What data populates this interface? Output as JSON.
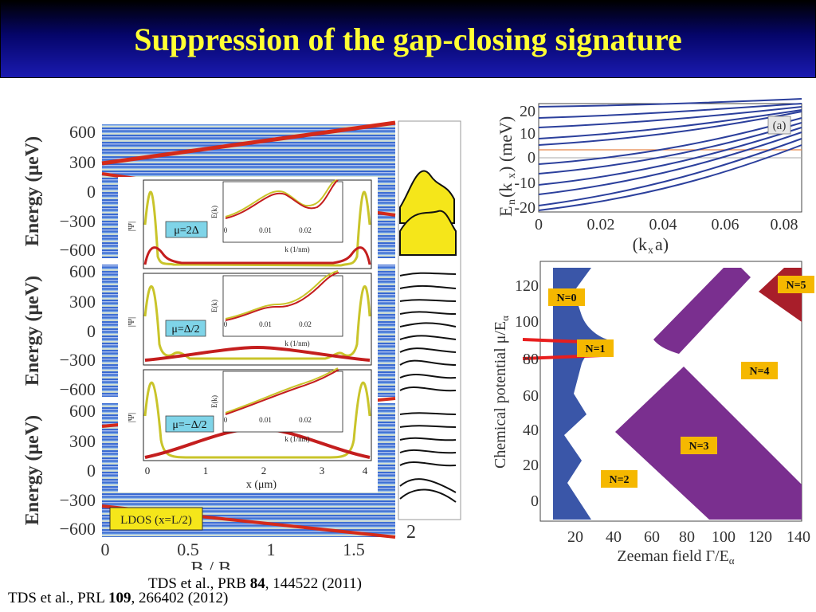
{
  "title": "Suppression of the gap-closing signature",
  "citations": {
    "prb": {
      "authors": "TDS et al., PRB ",
      "volume": "84",
      "rest": ", 144522 (2011)"
    },
    "prl": {
      "authors": "TDS et al., PRL ",
      "volume": "109",
      "rest": ", 266402 (2012)"
    }
  },
  "left_figure": {
    "ylabel": "Energy (μeV)",
    "y_ticks": [
      "600",
      "300",
      "0",
      "−300",
      "−600"
    ],
    "x_ticks": [
      "0",
      "0.5",
      "1",
      "1.5"
    ],
    "xlabel": "B / B",
    "xlabel_sub": "c",
    "panel_label": "LDOS (x=L/2)",
    "right_strip_label": "2"
  },
  "inset": {
    "psi_label": "|Ψ|",
    "psi_sup": "2",
    "x_ticks": [
      "0",
      "1",
      "2",
      "3",
      "4"
    ],
    "xlabel": "x (μm)",
    "mini_ylabel": "E(k)",
    "mini_y_ticks": [
      "0.4",
      "0.3",
      "0.2",
      "0.1"
    ],
    "mini_x_ticks": [
      "0",
      "0.01",
      "0.02"
    ],
    "mini_xlabel": "k (1/nm)",
    "panels": [
      {
        "mu": "μ=2Δ"
      },
      {
        "mu": "μ=Δ/2"
      },
      {
        "mu": "μ=−Δ/2"
      }
    ]
  },
  "band_plot": {
    "ylabel": "E",
    "ylabel_full": "(k",
    "ylabel_end": ")  (meV)",
    "y_ticks": [
      "20",
      "10",
      "0",
      "-10",
      "-20"
    ],
    "x_ticks": [
      "0",
      "0.02",
      "0.04",
      "0.06",
      "0.08"
    ],
    "xlabel_a": "(k",
    "xlabel_b": "a)",
    "panel_label": "(a)",
    "line_color": "#2b3f9c",
    "marker_line_color": "#e8864a"
  },
  "phase_diagram": {
    "ylabel": "Chemical potential  μ/E",
    "ylabel_sub": "α",
    "y_ticks": [
      "120",
      "100",
      "80",
      "60",
      "40",
      "20",
      "0"
    ],
    "x_ticks": [
      "20",
      "40",
      "60",
      "80",
      "100",
      "120",
      "140"
    ],
    "xlabel": "Zeeman field  Γ/E",
    "xlabel_sub": "α",
    "labels": [
      "N=0",
      "N=1",
      "N=2",
      "N=3",
      "N=4",
      "N=5"
    ],
    "colors": {
      "n_odd_blue": "#3a56a8",
      "n_purple": "#7a2f8f",
      "n5": "#a81e2a",
      "label_bg": "#f5b800"
    }
  }
}
